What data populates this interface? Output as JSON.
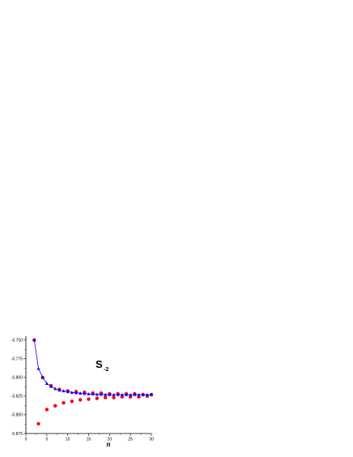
{
  "chart_data": {
    "type": "scatter",
    "title": "",
    "annotation": {
      "main": "S",
      "sub": "-2"
    },
    "xlabel": "n",
    "ylabel": "",
    "xlim": [
      0,
      30
    ],
    "ylim": [
      -0.875,
      -0.745
    ],
    "xticks": [
      0,
      5,
      10,
      15,
      20,
      25,
      30
    ],
    "yticks": [
      -0.75,
      -0.775,
      -0.8,
      -0.825,
      -0.85,
      -0.875
    ],
    "ytick_labels": [
      "-0.750",
      "-0.775",
      "-0.800",
      "-0.825",
      "-0.850",
      "-0.875"
    ],
    "grid": false,
    "legend": "none",
    "series": [
      {
        "marker": "circle",
        "color": "#ff0000",
        "x": [
          2,
          3,
          4,
          5,
          6,
          7,
          8,
          9,
          10,
          11,
          12,
          13,
          14,
          15,
          16,
          17,
          18,
          19,
          20,
          21,
          22,
          23,
          24,
          25,
          26,
          27,
          28,
          29,
          30
        ],
        "y": [
          -0.75,
          -0.862,
          -0.8,
          -0.843,
          -0.811,
          -0.838,
          -0.816,
          -0.834,
          -0.818,
          -0.832,
          -0.819,
          -0.83,
          -0.82,
          -0.829,
          -0.821,
          -0.828,
          -0.821,
          -0.827,
          -0.822,
          -0.827,
          -0.822,
          -0.826,
          -0.822,
          -0.826,
          -0.822,
          -0.826,
          -0.823,
          -0.825,
          -0.823
        ]
      },
      {
        "marker": "triangle",
        "color": "#0000ff",
        "line": true,
        "x": [
          2,
          3,
          4,
          5,
          6,
          7,
          8,
          9,
          10,
          11,
          12,
          13,
          14,
          15,
          16,
          17,
          18,
          19,
          20,
          21,
          22,
          23,
          24,
          25,
          26,
          27,
          28,
          29,
          30
        ],
        "y": [
          -0.75,
          -0.788,
          -0.8,
          -0.808,
          -0.812,
          -0.815,
          -0.817,
          -0.818,
          -0.819,
          -0.82,
          -0.8205,
          -0.821,
          -0.8215,
          -0.822,
          -0.8222,
          -0.8225,
          -0.8227,
          -0.8228,
          -0.823,
          -0.823,
          -0.823,
          -0.823,
          -0.823,
          -0.823,
          -0.823,
          -0.823,
          -0.823,
          -0.823,
          -0.823
        ]
      }
    ]
  }
}
